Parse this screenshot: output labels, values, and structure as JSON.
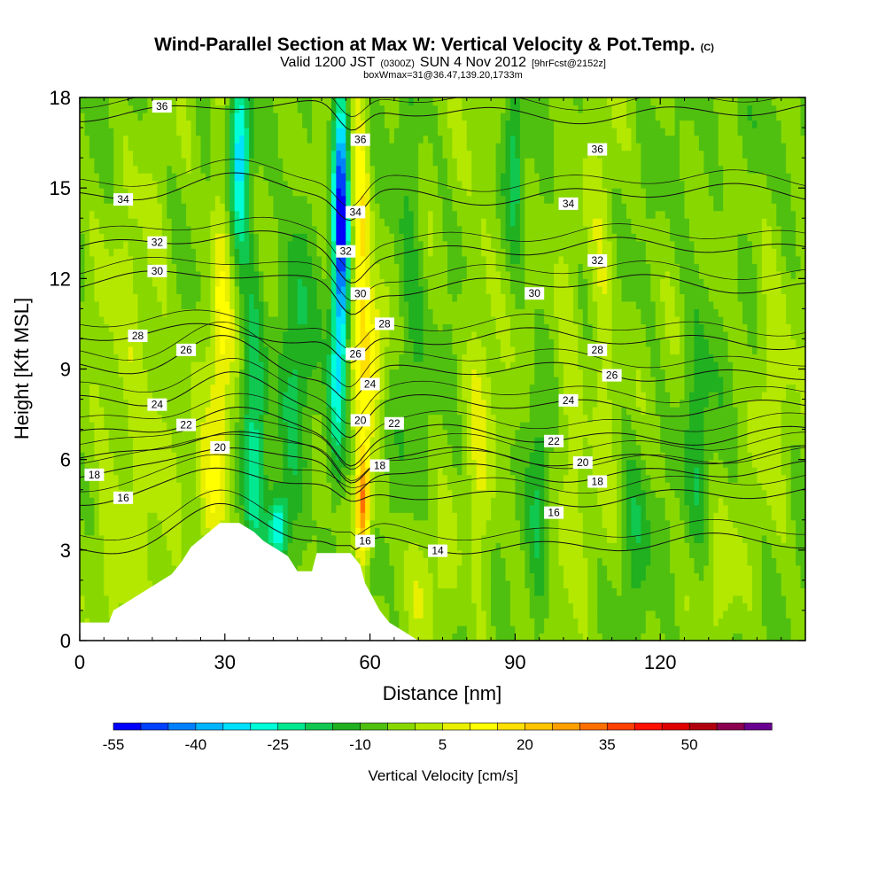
{
  "chart_data": {
    "type": "heatmap",
    "title": "Wind-Parallel Section at Max W: Vertical Velocity & Pot.Temp.",
    "title_mark": "(C)",
    "subtitle": {
      "prefix": "Valid 1200 JST",
      "utc": "(0300Z)",
      "date": "SUN 4 Nov 2012",
      "fcst": "[9hrFcst@2152z]"
    },
    "box_info": "boxWmax=31@36.47,139.20,1733m",
    "xlabel": "Distance [nm]",
    "ylabel": "Height [Kft MSL]",
    "xlim": [
      0,
      150
    ],
    "ylim": [
      0,
      18
    ],
    "x_ticks": [
      "0",
      "30",
      "60",
      "90",
      "120"
    ],
    "x_tick_values": [
      0,
      30,
      60,
      90,
      120
    ],
    "y_ticks": [
      "0",
      "3",
      "6",
      "9",
      "12",
      "15",
      "18"
    ],
    "y_tick_values": [
      0,
      3,
      6,
      9,
      12,
      15,
      18
    ],
    "colorbar": {
      "label": "Vertical Velocity [cm/s]",
      "tick_labels": [
        "-55",
        "-40",
        "-25",
        "-10",
        "5",
        "20",
        "35",
        "50"
      ],
      "tick_values": [
        -55,
        -40,
        -25,
        -10,
        5,
        20,
        35,
        50
      ],
      "min": -55,
      "max": 65,
      "step": 5,
      "colors": [
        "#0000ff",
        "#0040ff",
        "#0080ff",
        "#00b4ff",
        "#00e0ff",
        "#00ffd8",
        "#00e890",
        "#10c850",
        "#20b020",
        "#50c010",
        "#88d800",
        "#b4e800",
        "#e8f000",
        "#ffff00",
        "#ffe000",
        "#ffc400",
        "#ffa000",
        "#ff7000",
        "#ff4000",
        "#ff1000",
        "#e00000",
        "#b00010",
        "#8c0050",
        "#6a0090"
      ]
    },
    "velocity_features": [
      {
        "x": 12,
        "z": 8,
        "sx": 8,
        "sz": 6,
        "w": 7
      },
      {
        "x": 5,
        "z": 3,
        "sx": 5,
        "sz": 2.5,
        "w": 5
      },
      {
        "x": 29,
        "z": 10,
        "sx": 2.5,
        "sz": 6,
        "w": 14
      },
      {
        "x": 27,
        "z": 4.5,
        "sx": 3,
        "sz": 2,
        "w": 10
      },
      {
        "x": 33,
        "z": 16,
        "sx": 2,
        "sz": 3,
        "w": -28
      },
      {
        "x": 36,
        "z": 7,
        "sx": 2.5,
        "sz": 6,
        "w": -16
      },
      {
        "x": 41,
        "z": 3.7,
        "sx": 2,
        "sz": 1.3,
        "w": -28
      },
      {
        "x": 45,
        "z": 9,
        "sx": 3,
        "sz": 6,
        "w": -12
      },
      {
        "x": 54,
        "z": 14,
        "sx": 1.6,
        "sz": 4.5,
        "w": -48
      },
      {
        "x": 53,
        "z": 8,
        "sx": 1.8,
        "sz": 3,
        "w": -20
      },
      {
        "x": 58,
        "z": 13,
        "sx": 2,
        "sz": 6,
        "w": 20
      },
      {
        "x": 58.5,
        "z": 4.5,
        "sx": 1.5,
        "sz": 1.8,
        "w": 38
      },
      {
        "x": 61,
        "z": 9.5,
        "sx": 2.5,
        "sz": 2,
        "w": 14
      },
      {
        "x": 68,
        "z": 12,
        "sx": 3,
        "sz": 6,
        "w": -8
      },
      {
        "x": 72,
        "z": 2,
        "sx": 5,
        "sz": 2,
        "w": 6
      },
      {
        "x": 83,
        "z": 8,
        "sx": 3,
        "sz": 8,
        "w": 8
      },
      {
        "x": 90,
        "z": 16,
        "sx": 2,
        "sz": 3,
        "w": -12
      },
      {
        "x": 95,
        "z": 5,
        "sx": 2,
        "sz": 5,
        "w": -10
      },
      {
        "x": 101,
        "z": 7,
        "sx": 3,
        "sz": 5,
        "w": 8
      },
      {
        "x": 108,
        "z": 11,
        "sx": 3,
        "sz": 6,
        "w": 8
      },
      {
        "x": 115,
        "z": 4,
        "sx": 3,
        "sz": 3,
        "w": -9
      },
      {
        "x": 128,
        "z": 7,
        "sx": 3,
        "sz": 6,
        "w": -8
      },
      {
        "x": 132,
        "z": 2,
        "sx": 5,
        "sz": 2,
        "w": 6
      },
      {
        "x": 143,
        "z": 10,
        "sx": 4,
        "sz": 6,
        "w": 6
      },
      {
        "x": 140,
        "z": 17,
        "sx": 5,
        "sz": 2,
        "w": -7
      }
    ],
    "terrain_profile": [
      [
        0,
        0.6
      ],
      [
        6,
        0.6
      ],
      [
        7,
        1.0
      ],
      [
        10,
        1.3
      ],
      [
        14,
        1.7
      ],
      [
        16,
        1.9
      ],
      [
        19,
        2.2
      ],
      [
        21,
        2.6
      ],
      [
        23,
        3.1
      ],
      [
        26,
        3.5
      ],
      [
        29,
        3.9
      ],
      [
        33,
        3.9
      ],
      [
        36,
        3.6
      ],
      [
        38,
        3.3
      ],
      [
        41,
        3.0
      ],
      [
        43,
        2.8
      ],
      [
        45,
        2.3
      ],
      [
        48,
        2.3
      ],
      [
        49,
        2.9
      ],
      [
        56,
        2.9
      ],
      [
        58,
        2.5
      ],
      [
        59,
        1.9
      ],
      [
        62,
        1.0
      ],
      [
        64,
        0.6
      ],
      [
        67,
        0.3
      ],
      [
        70,
        0.0
      ],
      [
        150,
        0.0
      ]
    ],
    "theta_contours": [
      {
        "value": 14,
        "base": 3.2,
        "label": "14",
        "label_x": 74
      },
      {
        "value": 16,
        "base": 4.8,
        "label": "16",
        "label_x": 9
      },
      {
        "value": 16,
        "base": 4.4,
        "label": "16",
        "label_x": 98
      },
      {
        "value": 18,
        "base": 5.6,
        "label": "18",
        "label_x": 3
      },
      {
        "value": 18,
        "base": 5.5,
        "label": "18",
        "label_x": 107
      },
      {
        "value": 20,
        "base": 6.1,
        "label": "20",
        "label_x": 104
      },
      {
        "value": 22,
        "base": 6.8,
        "label": "22",
        "label_x": 22
      },
      {
        "value": 22,
        "base": 6.8,
        "label": "22",
        "label_x": 98
      },
      {
        "value": 24,
        "base": 7.8,
        "label": "24",
        "label_x": 16
      },
      {
        "value": 24,
        "base": 7.8,
        "label": "24",
        "label_x": 101
      },
      {
        "value": 26,
        "base": 8.9,
        "label": "26",
        "label_x": 22
      },
      {
        "value": 26,
        "base": 8.9,
        "label": "26",
        "label_x": 110
      },
      {
        "value": 28,
        "base": 10.0,
        "label": "28",
        "label_x": 12
      },
      {
        "value": 28,
        "base": 9.7,
        "label": "28",
        "label_x": 107
      },
      {
        "value": 30,
        "base": 11.8,
        "label": "30",
        "label_x": 16
      },
      {
        "value": 30,
        "base": 11.4,
        "label": "30",
        "label_x": 94
      },
      {
        "value": 32,
        "base": 13.0,
        "label": "32",
        "label_x": 16
      },
      {
        "value": 32,
        "base": 12.4,
        "label": "32",
        "label_x": 107
      },
      {
        "value": 34,
        "base": 14.8,
        "label": "34",
        "label_x": 9
      },
      {
        "value": 34,
        "base": 14.3,
        "label": "34",
        "label_x": 101
      },
      {
        "value": 36,
        "base": 17.5,
        "label": "36",
        "label_x": 17
      },
      {
        "value": 36,
        "base": 16.6,
        "label": "36",
        "label_x": 107
      }
    ],
    "plume_labels": [
      {
        "label": "36",
        "x": 58,
        "z": 16.6
      },
      {
        "label": "34",
        "x": 57,
        "z": 14.2
      },
      {
        "label": "32",
        "x": 55,
        "z": 12.9
      },
      {
        "label": "30",
        "x": 58,
        "z": 11.5
      },
      {
        "label": "28",
        "x": 63,
        "z": 10.5
      },
      {
        "label": "26",
        "x": 57,
        "z": 9.5
      },
      {
        "label": "24",
        "x": 60,
        "z": 8.5
      },
      {
        "label": "22",
        "x": 65,
        "z": 7.2
      },
      {
        "label": "20",
        "x": 58,
        "z": 7.3
      },
      {
        "label": "20",
        "x": 29,
        "z": 6.4
      },
      {
        "label": "18",
        "x": 62,
        "z": 5.8
      },
      {
        "label": "16",
        "x": 59,
        "z": 3.3
      }
    ]
  }
}
